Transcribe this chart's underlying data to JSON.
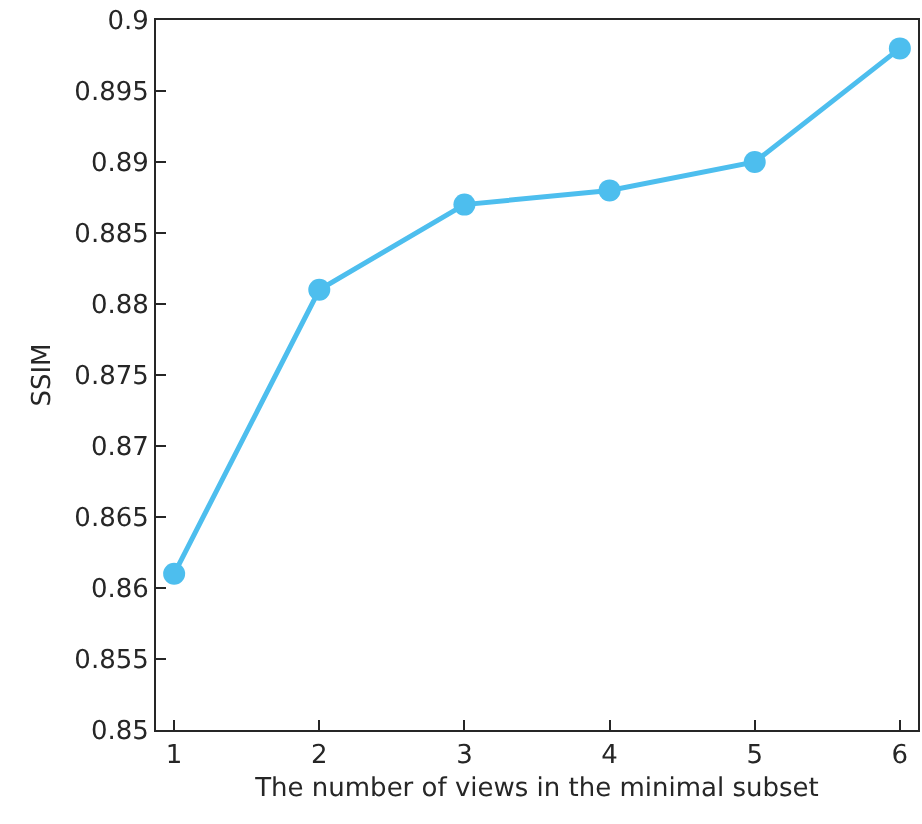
{
  "chart_data": {
    "type": "line",
    "xlabel": "The number of views in the minimal subset",
    "ylabel": "SSIM",
    "x": [
      1,
      2,
      3,
      4,
      5,
      6
    ],
    "series": [
      {
        "color": "#4dbeee",
        "values": [
          0.861,
          0.881,
          0.887,
          0.888,
          0.89,
          0.898
        ]
      }
    ],
    "xlim": [
      0.875,
      6.125
    ],
    "xticks": [
      1,
      2,
      3,
      4,
      5,
      6
    ],
    "ylim": [
      0.85,
      0.9
    ],
    "yticks": [
      0.85,
      0.855,
      0.86,
      0.865,
      0.87,
      0.875,
      0.88,
      0.885,
      0.89,
      0.895,
      0.9
    ],
    "legend": false,
    "marker": "circle",
    "line_style": "solid"
  }
}
